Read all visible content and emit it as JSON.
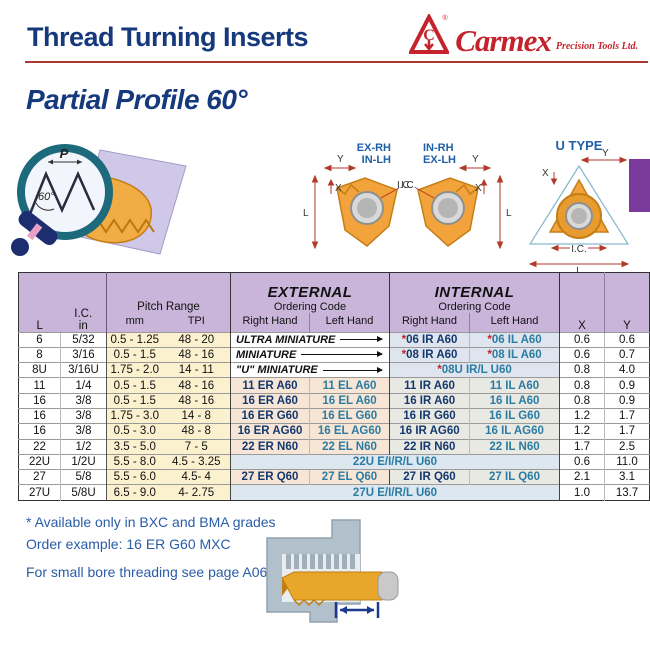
{
  "header": {
    "title": "Thread Turning Inserts",
    "brand": "Carmex",
    "registered": "®",
    "brand_suffix": "Precision Tools Ltd."
  },
  "section": {
    "title": "Partial Profile 60°"
  },
  "diagrams": {
    "magnifier": {
      "pitch_label": "P",
      "angle_label": "60°"
    },
    "insert_pair": {
      "left_label_1": "EX-RH",
      "left_label_2": "IN-LH",
      "right_label_1": "IN-RH",
      "right_label_2": "EX-LH"
    },
    "u_type": {
      "title": "U TYPE"
    },
    "dims": {
      "l": "L",
      "x": "X",
      "y": "Y",
      "ic": "I.C."
    }
  },
  "table": {
    "headers": {
      "l": "L",
      "ic": "I.C.",
      "ic_unit": "in",
      "pitch": "Pitch Range",
      "mm": "mm",
      "tpi": "TPI",
      "external": "EXTERNAL",
      "internal": "INTERNAL",
      "ordering": "Ordering Code",
      "right_hand": "Right Hand",
      "left_hand": "Left Hand",
      "x": "X",
      "y": "Y"
    },
    "rows": [
      {
        "type": "mini",
        "l": "6",
        "ic": "5/32",
        "mm": "0.5 - 1.25",
        "tpi": "48 - 20",
        "ext_label": "ULTRA MINIATURE",
        "int_rh": "*06 IR A60",
        "int_lh": "*06 IL A60",
        "x": "0.6",
        "y": "0.6"
      },
      {
        "type": "mini",
        "l": "8",
        "ic": "3/16",
        "mm": "0.5 - 1.5",
        "tpi": "48 - 16",
        "ext_label": "MINIATURE",
        "int_rh": "*08 IR A60",
        "int_lh": "*08 IL A60",
        "x": "0.6",
        "y": "0.7"
      },
      {
        "type": "mini-span",
        "l": "8U",
        "ic": "3/16U",
        "mm": "1.75 - 2.0",
        "tpi": "14 - 11",
        "ext_label": "\"U\" MINIATURE",
        "int_span": "*08U IR/L U60",
        "x": "0.8",
        "y": "4.0"
      },
      {
        "type": "normal",
        "l": "11",
        "ic": "1/4",
        "mm": "0.5 - 1.5",
        "tpi": "48 - 16",
        "ext_rh": "11 ER A60",
        "ext_lh": "11 EL A60",
        "int_rh": "11 IR A60",
        "int_lh": "11 IL A60",
        "x": "0.8",
        "y": "0.9"
      },
      {
        "type": "normal",
        "l": "16",
        "ic": "3/8",
        "mm": "0.5 - 1.5",
        "tpi": "48 - 16",
        "ext_rh": "16 ER A60",
        "ext_lh": "16 EL A60",
        "int_rh": "16 IR A60",
        "int_lh": "16 IL A60",
        "x": "0.8",
        "y": "0.9"
      },
      {
        "type": "normal",
        "l": "16",
        "ic": "3/8",
        "mm": "1.75 - 3.0",
        "tpi": "14 - 8",
        "ext_rh": "16 ER G60",
        "ext_lh": "16 EL G60",
        "int_rh": "16 IR G60",
        "int_lh": "16 IL G60",
        "x": "1.2",
        "y": "1.7"
      },
      {
        "type": "normal",
        "l": "16",
        "ic": "3/8",
        "mm": "0.5 - 3.0",
        "tpi": "48 - 8",
        "ext_rh": "16 ER AG60",
        "ext_lh": "16 EL AG60",
        "int_rh": "16 IR AG60",
        "int_lh": "16 IL AG60",
        "x": "1.2",
        "y": "1.7"
      },
      {
        "type": "normal",
        "l": "22",
        "ic": "1/2",
        "mm": "3.5 - 5.0",
        "tpi": "7 - 5",
        "ext_rh": "22 ER N60",
        "ext_lh": "22 EL N60",
        "int_rh": "22 IR N60",
        "int_lh": "22 IL N60",
        "x": "1.7",
        "y": "2.5"
      },
      {
        "type": "span",
        "l": "22U",
        "ic": "1/2U",
        "mm": "5.5 - 8.0",
        "tpi": "4.5 - 3.25",
        "span": "22U E/I/R/L U60",
        "x": "0.6",
        "y": "11.0"
      },
      {
        "type": "normal",
        "l": "27",
        "ic": "5/8",
        "mm": "5.5 - 6.0",
        "tpi": "4.5- 4",
        "ext_rh": "27 ER Q60",
        "ext_lh": "27 EL Q60",
        "int_rh": "27 IR Q60",
        "int_lh": "27 IL Q60",
        "x": "2.1",
        "y": "3.1"
      },
      {
        "type": "span",
        "l": "27U",
        "ic": "5/8U",
        "mm": "6.5 - 9.0",
        "tpi": "4- 2.75",
        "span": "27U E/I/R/L U60",
        "x": "1.0",
        "y": "13.7"
      }
    ]
  },
  "notes": [
    "* Available only in BXC and BMA grades",
    "Order example: 16 ER G60 MXC",
    "For small bore threading see page A06-12"
  ],
  "colors": {
    "title_navy": "#16397d",
    "brand_red": "#c4232b",
    "header_purple": "#c9b4da",
    "pitch_cream": "#fbf1cf",
    "external_peach": "#f7e6d6",
    "internal_gray": "#e9e9e3",
    "span_blue": "#dde7f0",
    "code_right_hand": "#14386e",
    "code_left_hand": "#2a7ca3",
    "note_blue": "#2a5ca8",
    "tab_purple": "#7a3b9d",
    "insert_orange": "#f3a93c"
  }
}
